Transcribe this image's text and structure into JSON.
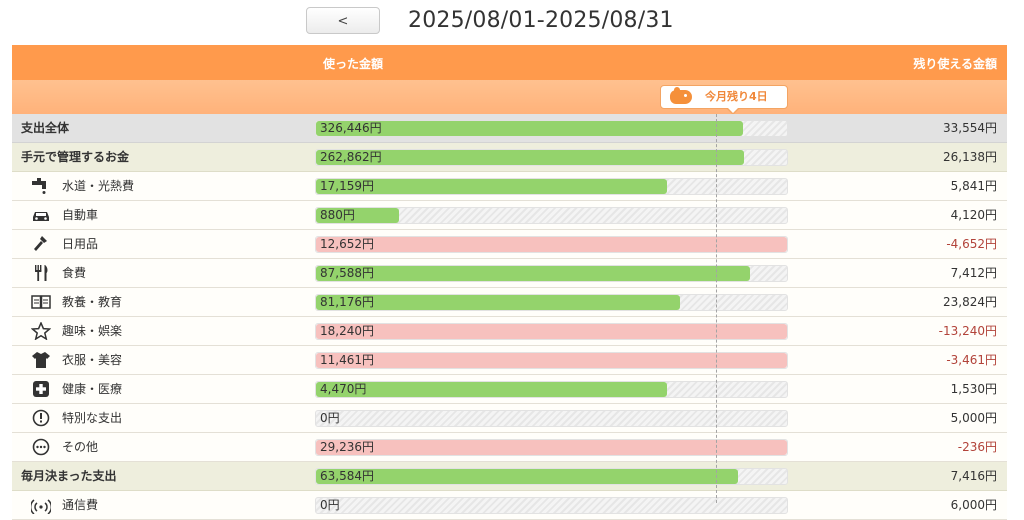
{
  "header": {
    "prev_button": "<",
    "date_range": "2025/08/01-2025/08/31"
  },
  "table_head": {
    "used_label": "使った金額",
    "remaining_label": "残り使える金額",
    "days_left_badge": "今月残り4日",
    "badge_icon": "piggy-bank-icon"
  },
  "colors": {
    "header_orange": "#ff9a4c",
    "bar_ok": "#94d36c",
    "bar_over": "#f7c1be",
    "negative_text": "#b2433a"
  },
  "rows": [
    {
      "kind": "total",
      "label": "支出全体",
      "icon": "",
      "used": "326,446円",
      "remaining": "33,554円",
      "fill": 0.907,
      "over": false,
      "negative": false
    },
    {
      "kind": "group",
      "label": "手元で管理するお金",
      "icon": "",
      "used": "262,862円",
      "remaining": "26,138円",
      "fill": 0.909,
      "over": false,
      "negative": false
    },
    {
      "kind": "cat",
      "label": "水道・光熱費",
      "icon": "faucet-icon",
      "used": "17,159円",
      "remaining": "5,841円",
      "fill": 0.746,
      "over": false,
      "negative": false
    },
    {
      "kind": "cat",
      "label": "自動車",
      "icon": "car-icon",
      "used": "880円",
      "remaining": "4,120円",
      "fill": 0.176,
      "over": false,
      "negative": false
    },
    {
      "kind": "cat",
      "label": "日用品",
      "icon": "hammer-icon",
      "used": "12,652円",
      "remaining": "-4,652円",
      "fill": 1.0,
      "over": true,
      "negative": true
    },
    {
      "kind": "cat",
      "label": "食費",
      "icon": "fork-knife-icon",
      "used": "87,588円",
      "remaining": "7,412円",
      "fill": 0.922,
      "over": false,
      "negative": false
    },
    {
      "kind": "cat",
      "label": "教養・教育",
      "icon": "book-icon",
      "used": "81,176円",
      "remaining": "23,824円",
      "fill": 0.773,
      "over": false,
      "negative": false
    },
    {
      "kind": "cat",
      "label": "趣味・娯楽",
      "icon": "star-icon",
      "used": "18,240円",
      "remaining": "-13,240円",
      "fill": 1.0,
      "over": true,
      "negative": true
    },
    {
      "kind": "cat",
      "label": "衣服・美容",
      "icon": "shirt-icon",
      "used": "11,461円",
      "remaining": "-3,461円",
      "fill": 1.0,
      "over": true,
      "negative": true
    },
    {
      "kind": "cat",
      "label": "健康・医療",
      "icon": "medical-cross-icon",
      "used": "4,470円",
      "remaining": "1,530円",
      "fill": 0.745,
      "over": false,
      "negative": false
    },
    {
      "kind": "cat",
      "label": "特別な支出",
      "icon": "exclamation-circle-icon",
      "used": "0円",
      "remaining": "5,000円",
      "fill": 0.0,
      "over": false,
      "negative": false
    },
    {
      "kind": "cat",
      "label": "その他",
      "icon": "ellipsis-circle-icon",
      "used": "29,236円",
      "remaining": "-236円",
      "fill": 1.0,
      "over": true,
      "negative": true
    },
    {
      "kind": "group",
      "label": "毎月決まった支出",
      "icon": "",
      "used": "63,584円",
      "remaining": "7,416円",
      "fill": 0.895,
      "over": false,
      "negative": false
    },
    {
      "kind": "cat",
      "label": "通信費",
      "icon": "signal-icon",
      "used": "0円",
      "remaining": "6,000円",
      "fill": 0.0,
      "over": false,
      "negative": false
    }
  ]
}
